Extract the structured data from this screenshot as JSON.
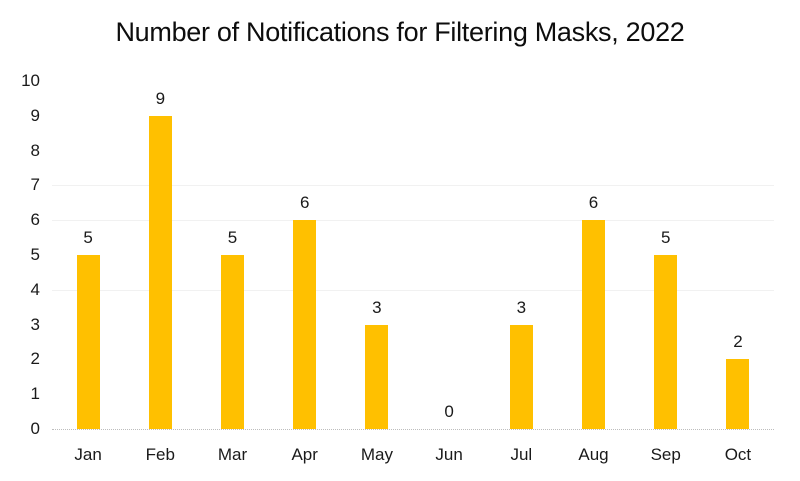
{
  "chart_data": {
    "type": "bar",
    "title": "Number of Notifications for Filtering Masks, 2022",
    "categories": [
      "Jan",
      "Feb",
      "Mar",
      "Apr",
      "May",
      "Jun",
      "Jul",
      "Aug",
      "Sep",
      "Oct"
    ],
    "values": [
      5,
      9,
      5,
      6,
      3,
      0,
      3,
      6,
      5,
      2
    ],
    "xlabel": "",
    "ylabel": "",
    "ylim": [
      0,
      10
    ],
    "yticks": [
      0,
      1,
      2,
      3,
      4,
      5,
      6,
      7,
      8,
      9,
      10
    ],
    "data_labels_shown": true,
    "data_label_position": "above",
    "legend": "none",
    "grid": "partial",
    "visible_gridlines": [
      4,
      6,
      7
    ],
    "bar_color": "#FFC000",
    "background_color": "#FFFFFF",
    "text_color": "#1A1A1A",
    "gridline_color": "#F1F1F1",
    "baseline_color": "#BDBDBD"
  }
}
